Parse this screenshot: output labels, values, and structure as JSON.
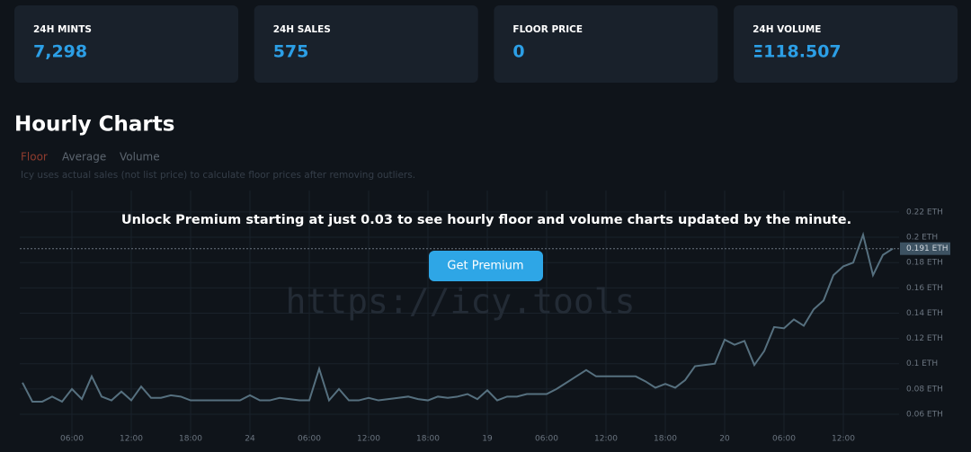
{
  "stats": [
    {
      "label": "24H MINTS",
      "value": "7,298"
    },
    {
      "label": "24H SALES",
      "value": "575"
    },
    {
      "label": "FLOOR PRICE",
      "value": "0"
    },
    {
      "label": "24H VOLUME",
      "value": "Ξ118.507"
    }
  ],
  "heading": "Hourly Charts",
  "tabs": [
    "Floor",
    "Average",
    "Volume"
  ],
  "note": "Icy uses actual sales (not list price) to calculate floor prices after removing outliers.",
  "premium": {
    "message": "Unlock Premium starting at just 0.03 to see hourly floor and volume charts updated by the minute.",
    "button": "Get Premium"
  },
  "watermark": "https://icy.tools",
  "chart": {
    "type": "line",
    "color": "#56707f",
    "x": [
      1,
      2,
      3,
      4,
      5,
      6,
      7,
      8,
      9,
      10,
      11,
      12,
      13,
      14,
      15,
      16,
      17,
      18,
      19,
      20,
      21,
      22,
      23,
      24,
      25,
      26,
      27,
      28,
      29,
      30,
      31,
      32,
      33,
      34,
      35,
      36,
      37,
      38,
      39,
      40,
      41,
      42,
      43,
      44,
      45,
      46,
      47,
      48,
      49,
      50,
      51,
      52,
      53,
      54,
      55,
      56,
      57,
      58,
      59,
      60,
      61,
      62,
      63,
      64,
      65,
      66,
      67,
      68,
      69,
      70,
      71,
      72,
      73,
      74,
      75,
      76,
      77,
      78,
      79,
      80,
      81,
      82,
      83,
      84,
      85,
      86,
      87,
      88,
      89
    ],
    "values": [
      0.085,
      0.07,
      0.07,
      0.074,
      0.07,
      0.08,
      0.072,
      0.09,
      0.074,
      0.071,
      0.078,
      0.071,
      0.082,
      0.073,
      0.073,
      0.075,
      0.074,
      0.071,
      0.071,
      0.071,
      0.071,
      0.071,
      0.071,
      0.075,
      0.071,
      0.071,
      0.073,
      0.072,
      0.071,
      0.071,
      0.096,
      0.071,
      0.08,
      0.071,
      0.071,
      0.073,
      0.071,
      0.072,
      0.073,
      0.074,
      0.072,
      0.071,
      0.074,
      0.073,
      0.074,
      0.076,
      0.072,
      0.079,
      0.071,
      0.074,
      0.074,
      0.076,
      0.076,
      0.076,
      0.08,
      0.085,
      0.09,
      0.095,
      0.09,
      0.09,
      0.09,
      0.09,
      0.09,
      0.086,
      0.081,
      0.084,
      0.081,
      0.087,
      0.098,
      0.099,
      0.1,
      0.119,
      0.115,
      0.118,
      0.099,
      0.11,
      0.129,
      0.128,
      0.135,
      0.13,
      0.143,
      0.15,
      0.17,
      0.177,
      0.18,
      0.202,
      0.17,
      0.186,
      0.191
    ],
    "xlim": [
      0.7,
      89.6
    ],
    "ylim": [
      0.0394,
      0.237
    ],
    "xticks": [
      {
        "value": 6,
        "label": "06:00"
      },
      {
        "value": 12,
        "label": "12:00"
      },
      {
        "value": 18,
        "label": "18:00"
      },
      24,
      {
        "value": 30,
        "label": "06:00"
      },
      {
        "value": 36,
        "label": "12:00"
      },
      {
        "value": 42,
        "label": "18:00"
      },
      {
        "value": 48,
        "label": "19"
      },
      {
        "value": 54,
        "label": "06:00"
      },
      {
        "value": 60,
        "label": "12:00"
      },
      {
        "value": 66,
        "label": "18:00"
      },
      {
        "value": 72,
        "label": "20"
      },
      {
        "value": 78,
        "label": "06:00"
      },
      {
        "value": 84,
        "label": "12:00"
      }
    ],
    "yticks": [
      {
        "value": 0.06,
        "label": "0.06 ETH"
      },
      {
        "value": 0.08,
        "label": "0.08 ETH"
      },
      {
        "value": 0.1,
        "label": "0.1 ETH"
      },
      {
        "value": 0.12,
        "label": "0.12 ETH"
      },
      {
        "value": 0.14,
        "label": "0.14 ETH"
      },
      {
        "value": 0.16,
        "label": "0.16 ETH"
      },
      {
        "value": 0.18,
        "label": "0.18 ETH"
      },
      {
        "value": 0.2,
        "label": "0.2 ETH"
      },
      {
        "value": 0.22,
        "label": "0.22 ETH"
      }
    ],
    "current": {
      "value": 0.191,
      "label": "0.191 ETH"
    },
    "grid": true
  }
}
